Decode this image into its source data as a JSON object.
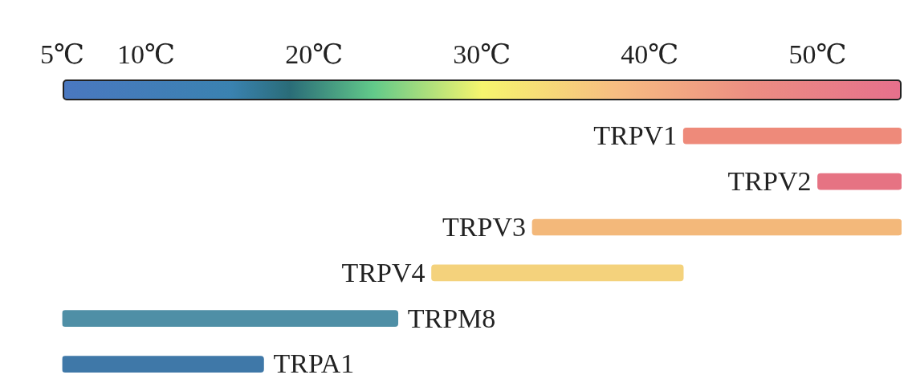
{
  "chart_data": {
    "type": "bar",
    "orientation": "horizontal",
    "categories": [
      "TRPV1",
      "TRPV2",
      "TRPV3",
      "TRPV4",
      "TRPM8",
      "TRPA1"
    ],
    "base": [
      42,
      50,
      33,
      27,
      5,
      5
    ],
    "values": [
      13,
      5,
      22,
      15,
      20,
      12
    ],
    "colors": [
      "#ee8a7a",
      "#e67383",
      "#f3b87a",
      "#f4d27c",
      "#4f8fa6",
      "#3f78a8"
    ],
    "xlim": [
      5,
      55
    ],
    "xticks": [
      {
        "value": 5,
        "label": "5℃"
      },
      {
        "value": 10,
        "label": "10℃"
      },
      {
        "value": 20,
        "label": "20℃"
      },
      {
        "value": 30,
        "label": "30℃"
      },
      {
        "value": 40,
        "label": "40℃"
      },
      {
        "value": 50,
        "label": "50℃"
      }
    ],
    "tick_labels": "x",
    "grid": false,
    "legend": false
  }
}
